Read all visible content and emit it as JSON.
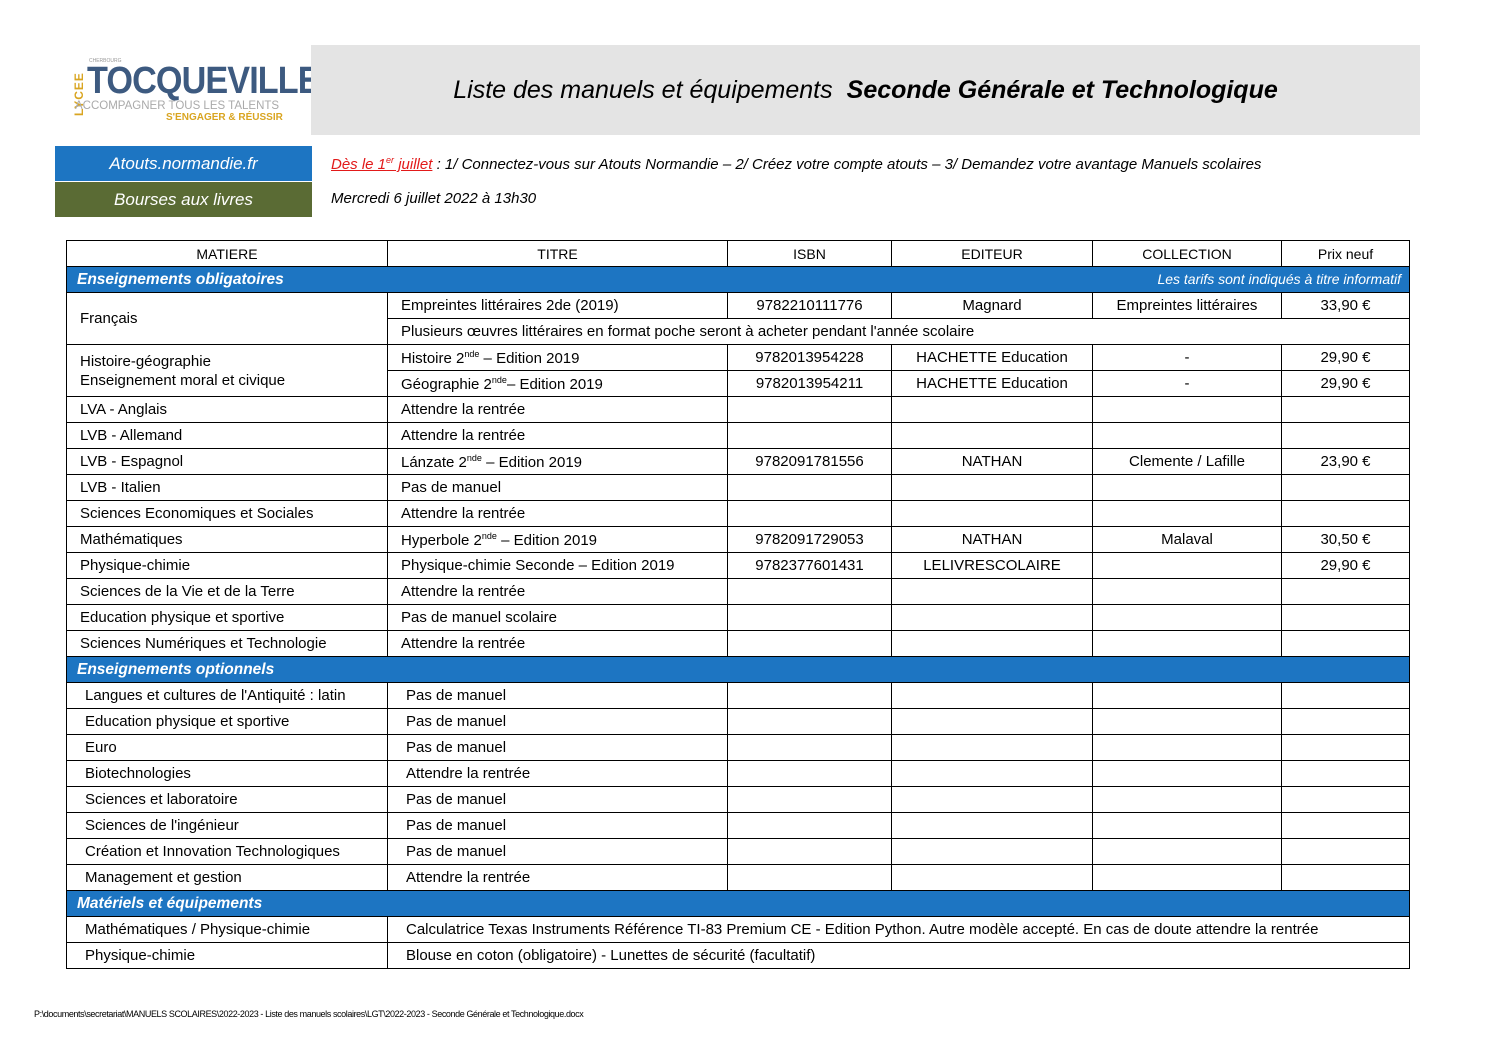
{
  "logo": {
    "lycee": "LYCEE",
    "city": "CHERBOURG",
    "name": "TOCQUEVILLE",
    "tagline1": "ACCOMPAGNER TOUS LES TALENTS",
    "tagline2": "S'ENGAGER & RÉUSSIR",
    "colors": {
      "blue": "#3d5a80",
      "gold": "#d9a521"
    }
  },
  "header": {
    "title_regular": "Liste des manuels et équipements",
    "title_bold": "Seconde Générale et Technologique"
  },
  "links": {
    "atouts": "Atouts.normandie.fr",
    "bourses": "Bourses aux livres"
  },
  "info": {
    "line1_red": "Dès le 1",
    "line1_red_sup": "er",
    "line1_red_post": " juillet",
    "line1_rest": " : 1/ Connectez-vous sur Atouts Normandie  – 2/ Créez votre compte atouts – 3/ Demandez votre avantage Manuels scolaires",
    "line2": "Mercredi 6 juillet 2022 à 13h30"
  },
  "table": {
    "headers": [
      "MATIERE",
      "TITRE",
      "ISBN",
      "EDITEUR",
      "COLLECTION",
      "Prix neuf"
    ],
    "sections": [
      {
        "title": "Enseignements obligatoires",
        "note": "Les tarifs sont indiqués à titre informatif",
        "class": "",
        "rows": [
          {
            "matiere": "Français",
            "span": 2,
            "titre": "Empreintes littéraires 2de (2019)",
            "isbn": "9782210111776",
            "editeur": "Magnard",
            "collection": "Empreintes littéraires",
            "prix": "33,90 €"
          },
          {
            "wide": "Plusieurs œuvres littéraires en format poche seront à acheter pendant l'année scolaire"
          },
          {
            "matiere": "Histoire-géographie",
            "matiere2": "Enseignement moral et civique",
            "span": 2,
            "titre": "Histoire 2",
            "sup": "nde",
            "titre_post": " – Edition  2019",
            "isbn": "9782013954228",
            "editeur": "HACHETTE Education",
            "collection": "-",
            "prix": "29,90 €"
          },
          {
            "titre": "Géographie 2",
            "sup": "nde",
            "titre_post": "– Edition  2019",
            "isbn": "9782013954211",
            "editeur": "HACHETTE Education",
            "collection": "-",
            "prix": "29,90 €"
          },
          {
            "matiere": "LVA - Anglais",
            "titre": "Attendre la rentrée"
          },
          {
            "matiere": "LVB - Allemand",
            "titre": "Attendre la rentrée"
          },
          {
            "matiere": "LVB - Espagnol",
            "titre": "Lánzate 2",
            "sup": "nde",
            "titre_post": " – Edition 2019",
            "isbn": "9782091781556",
            "editeur": "NATHAN",
            "collection": "Clemente / Lafille",
            "prix": "23,90 €"
          },
          {
            "matiere": "LVB - Italien",
            "titre": "Pas de manuel"
          },
          {
            "matiere": "Sciences Economiques et Sociales",
            "titre": "Attendre la rentrée"
          },
          {
            "matiere": "Mathématiques",
            "titre": "Hyperbole 2",
            "sup": "nde",
            "titre_post": " – Edition 2019",
            "isbn": "9782091729053",
            "editeur": "NATHAN",
            "collection": "Malaval",
            "prix": "30,50 €"
          },
          {
            "matiere": "Physique-chimie",
            "titre": "Physique-chimie Seconde – Edition 2019",
            "isbn": "9782377601431",
            "editeur": "LELIVRESCOLAIRE",
            "prix": "29,90 €"
          },
          {
            "matiere": "Sciences de la Vie et de la Terre",
            "titre": "Attendre la rentrée"
          },
          {
            "matiere": "Education physique et sportive",
            "titre": "Pas de manuel scolaire"
          },
          {
            "matiere": "Sciences Numériques et Technologie",
            "titre": "Attendre la rentrée"
          }
        ]
      },
      {
        "title": "Enseignements optionnels",
        "class": "opt",
        "rows": [
          {
            "matiere": "Langues et cultures de l'Antiquité : latin",
            "titre": "Pas de manuel"
          },
          {
            "matiere": "Education physique et sportive",
            "titre": "Pas de manuel"
          },
          {
            "matiere": "Euro",
            "titre": "Pas de manuel"
          },
          {
            "matiere": "Biotechnologies",
            "titre": "Attendre la rentrée"
          },
          {
            "matiere": "Sciences et laboratoire",
            "titre": "Pas de manuel"
          },
          {
            "matiere": "Sciences de l'ingénieur",
            "titre": "Pas de manuel"
          },
          {
            "matiere": "Création et Innovation Technologiques",
            "titre": "Pas de manuel"
          },
          {
            "matiere": "Management et gestion",
            "titre": "Attendre la rentrée"
          }
        ]
      },
      {
        "title": "Matériels et équipements",
        "class": "opt",
        "rows": [
          {
            "matiere": "Mathématiques  /  Physique-chimie",
            "wide": "Calculatrice Texas Instruments  Référence TI-83 Premium CE - Edition Python. Autre modèle accepté. En cas de doute attendre la rentrée"
          },
          {
            "matiere": "Physique-chimie",
            "wide": "Blouse en coton (obligatoire)  - Lunettes de sécurité (facultatif)"
          }
        ]
      }
    ]
  },
  "footer": "P:\\documents\\secretariat\\MANUELS SCOLAIRES\\2022-2023 - Liste des manuels scolaires\\LGT\\2022-2023 - Seconde Générale et Technologique.docx"
}
